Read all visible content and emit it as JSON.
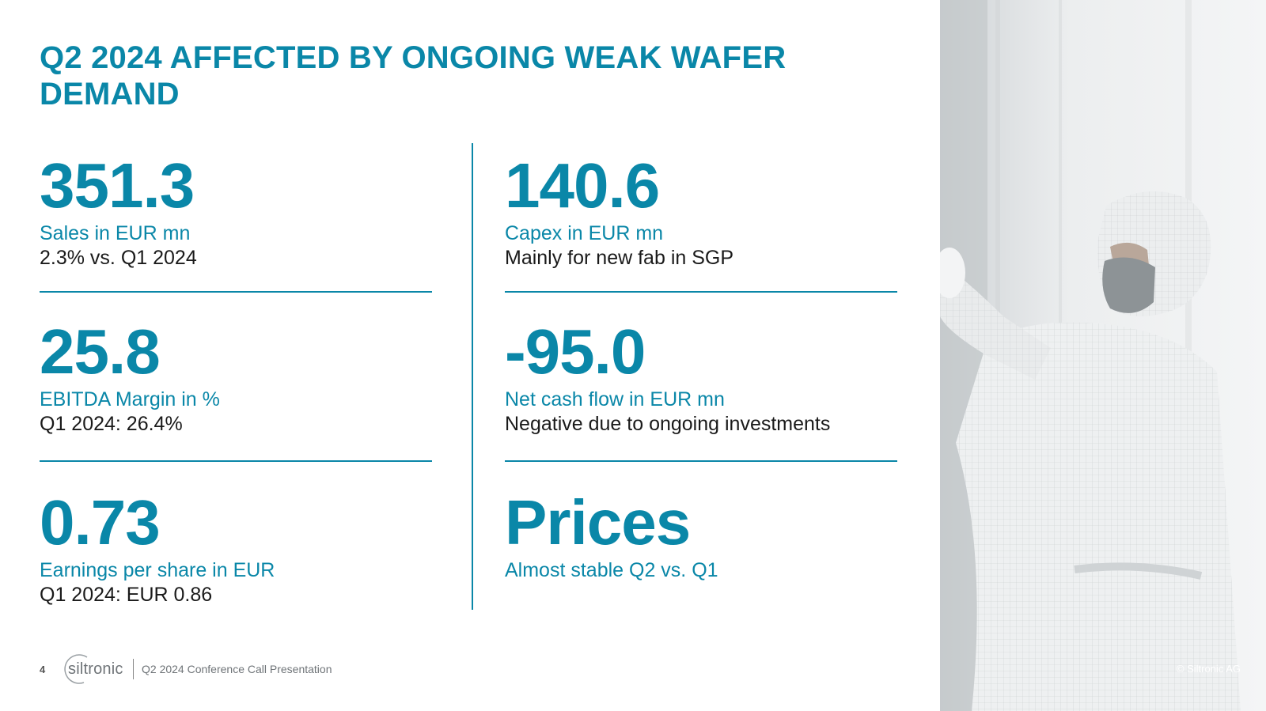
{
  "title": "Q2 2024 AFFECTED BY ONGOING WEAK WAFER DEMAND",
  "kpis": [
    {
      "value": "351.3",
      "label": "Sales in EUR mn",
      "note": "2.3% vs. Q1 2024"
    },
    {
      "value": "25.8",
      "label": "EBITDA Margin in %",
      "note": "Q1 2024: 26.4%"
    },
    {
      "value": "0.73",
      "label": "Earnings per share in EUR",
      "note": "Q1 2024: EUR 0.86"
    },
    {
      "value": "140.6",
      "label": "Capex in EUR mn",
      "note": "Mainly for new fab in SGP"
    },
    {
      "value": "-95.0",
      "label": "Net cash flow in EUR mn",
      "note": "Negative due to ongoing investments"
    },
    {
      "value": "Prices",
      "label": "Almost stable Q2 vs. Q1",
      "note": ""
    }
  ],
  "footer": {
    "page_number": "4",
    "logo_text": "siltronic",
    "presentation_title": "Q2 2024 Conference Call Presentation"
  },
  "photo": {
    "copyright": "© Siltronic AG"
  },
  "colors": {
    "accent": "#0a87a8",
    "body_text": "#1a1a1a"
  }
}
